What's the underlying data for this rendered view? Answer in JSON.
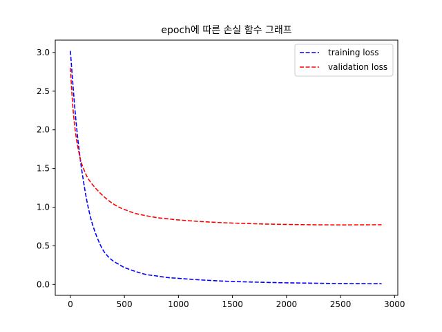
{
  "chart_data": {
    "type": "line",
    "title": "epoch에 따른 손실 함수 그래프",
    "xlabel": "",
    "ylabel": "",
    "xlim": [
      -140,
      3030
    ],
    "ylim": [
      -0.14,
      3.16
    ],
    "xticks": [
      0,
      500,
      1000,
      1500,
      2000,
      2500,
      3000
    ],
    "yticks": [
      0.0,
      0.5,
      1.0,
      1.5,
      2.0,
      2.5,
      3.0
    ],
    "xtick_labels": [
      "0",
      "500",
      "1000",
      "1500",
      "2000",
      "2500",
      "3000"
    ],
    "ytick_labels": [
      "0.0",
      "0.5",
      "1.0",
      "1.5",
      "2.0",
      "2.5",
      "3.0"
    ],
    "grid": false,
    "legend_position": "top-right",
    "series": [
      {
        "name": "training loss",
        "color": "#0000ff",
        "line_style": "dashed",
        "x": [
          0,
          20,
          40,
          60,
          80,
          100,
          130,
          160,
          200,
          250,
          300,
          350,
          400,
          450,
          500,
          600,
          700,
          800,
          900,
          1000,
          1200,
          1400,
          1600,
          1800,
          2000,
          2200,
          2400,
          2600,
          2880
        ],
        "y": [
          3.02,
          2.65,
          2.3,
          2.0,
          1.75,
          1.53,
          1.26,
          1.03,
          0.8,
          0.6,
          0.45,
          0.36,
          0.3,
          0.26,
          0.22,
          0.17,
          0.13,
          0.11,
          0.09,
          0.08,
          0.06,
          0.045,
          0.035,
          0.028,
          0.022,
          0.018,
          0.014,
          0.012,
          0.01
        ]
      },
      {
        "name": "validation loss",
        "color": "#ff0000",
        "line_style": "dashed",
        "x": [
          0,
          20,
          40,
          60,
          80,
          100,
          130,
          160,
          200,
          250,
          300,
          350,
          400,
          450,
          500,
          600,
          700,
          800,
          900,
          1000,
          1200,
          1400,
          1600,
          1800,
          2000,
          2200,
          2400,
          2600,
          2880
        ],
        "y": [
          2.8,
          2.35,
          2.05,
          1.85,
          1.7,
          1.58,
          1.47,
          1.38,
          1.3,
          1.22,
          1.15,
          1.09,
          1.04,
          1.0,
          0.97,
          0.92,
          0.89,
          0.865,
          0.85,
          0.835,
          0.815,
          0.8,
          0.79,
          0.782,
          0.777,
          0.773,
          0.771,
          0.771,
          0.773
        ]
      }
    ]
  }
}
